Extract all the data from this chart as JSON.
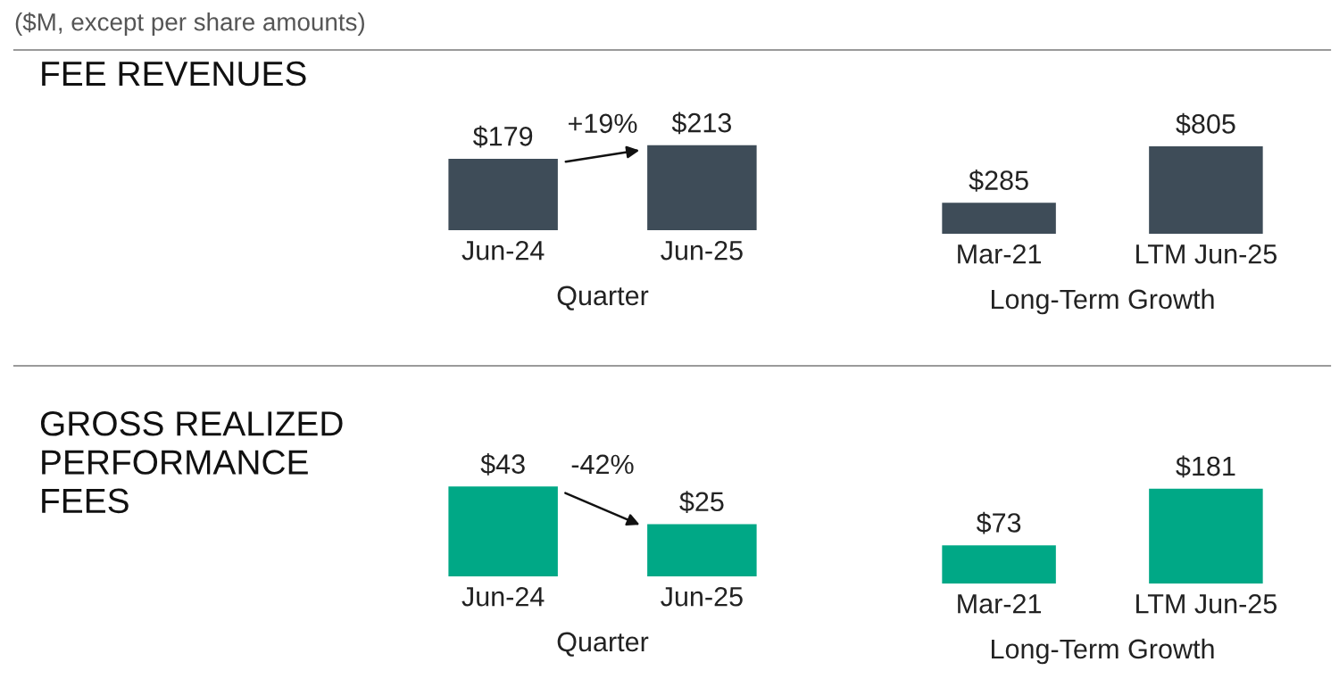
{
  "chart_data": [
    {
      "type": "bar",
      "title": "FEE REVENUES",
      "xlabel": "Quarter",
      "categories": [
        "Jun-24",
        "Jun-25"
      ],
      "values": [
        179,
        213
      ],
      "value_labels": [
        "$179",
        "$213"
      ],
      "color": "#3e4c58",
      "annotations": [
        "($M, except per share amounts)",
        "+19%"
      ]
    },
    {
      "type": "bar",
      "xlabel": "Long-Term Growth",
      "categories": [
        "Mar-21",
        "LTM Jun-25"
      ],
      "values": [
        285,
        805
      ],
      "value_labels": [
        "$285",
        "$805"
      ],
      "color": "#3e4c58"
    },
    {
      "type": "bar",
      "title": "GROSS REALIZED\nPERFORMANCE\nFEES",
      "xlabel": "Quarter",
      "categories": [
        "Jun-24",
        "Jun-25"
      ],
      "values": [
        43,
        25
      ],
      "value_labels": [
        "$43",
        "$25"
      ],
      "color": "#00a886",
      "annotations": [
        "-42%"
      ]
    },
    {
      "type": "bar",
      "xlabel": "Long-Term Growth",
      "categories": [
        "Mar-21",
        "LTM Jun-25"
      ],
      "values": [
        73,
        181
      ],
      "value_labels": [
        "$73",
        "$181"
      ],
      "color": "#00a886"
    }
  ]
}
